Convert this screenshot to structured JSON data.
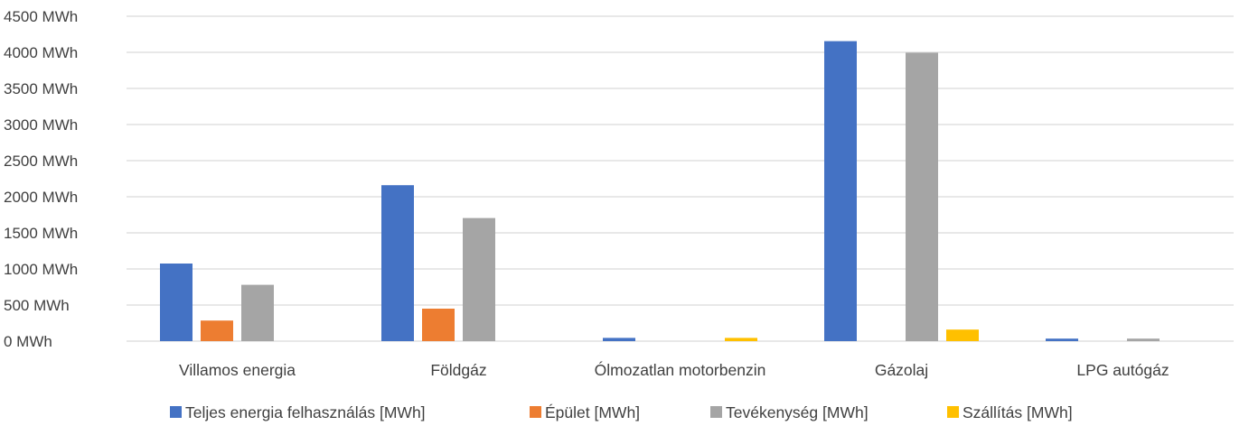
{
  "chart_data": {
    "type": "bar",
    "categories": [
      "Villamos energia",
      "Földgáz",
      "Ólmozatlan motorbenzin",
      "Gázolaj",
      "LPG autógáz"
    ],
    "series": [
      {
        "name": "Teljes energia felhasználás [MWh]",
        "color": "#4472C4",
        "values": [
          1075,
          2160,
          45,
          4155,
          35
        ]
      },
      {
        "name": "Épület [MWh]",
        "color": "#ED7D31",
        "values": [
          285,
          450,
          0,
          0,
          0
        ]
      },
      {
        "name": "Tevékenység [MWh]",
        "color": "#A5A5A5",
        "values": [
          780,
          1705,
          0,
          3995,
          35
        ]
      },
      {
        "name": "Szállítás [MWh]",
        "color": "#FFC000",
        "values": [
          0,
          0,
          45,
          160,
          0
        ]
      }
    ],
    "ylim": [
      0,
      4500
    ],
    "y_ticks": [
      0,
      500,
      1000,
      1500,
      2000,
      2500,
      3000,
      3500,
      4000,
      4500
    ],
    "y_tick_labels": [
      "0 MWh",
      "500 MWh",
      "1000 MWh",
      "1500 MWh",
      "2000 MWh",
      "2500 MWh",
      "3000 MWh",
      "3500 MWh",
      "4000 MWh",
      "4500 MWh"
    ],
    "grid": true,
    "legend_position": "bottom"
  }
}
